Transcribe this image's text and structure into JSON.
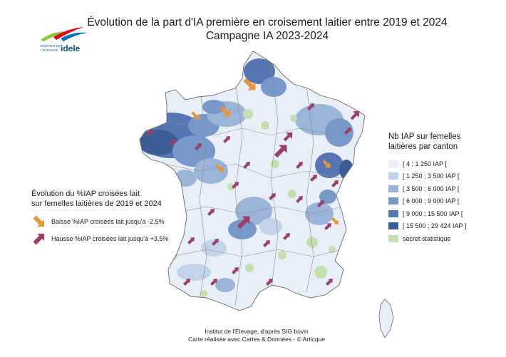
{
  "title": {
    "line1": "Évolution de la part d'IA première en croisement laitier entre 2019 et 2024",
    "line2": "Campagne IA 2023-2024"
  },
  "logo": {
    "icon": "idele-logo",
    "small_text_1": "INSTITUT DE",
    "small_text_2": "L'ÉLEVAGE",
    "brand": "idele"
  },
  "legend_classes": {
    "title_line1": "Nb IAP sur femelles",
    "title_line2": "laitières par canton",
    "items": [
      {
        "label": "[ 4 ; 1 250 IAP [",
        "color": "#e8eff8"
      },
      {
        "label": "[ 1 250 ; 3 500 IAP [",
        "color": "#c3d3ea"
      },
      {
        "label": "[ 3 500 ; 6 000 IAP [",
        "color": "#9bb5d9"
      },
      {
        "label": "[ 6 000 ; 9 000 IAP [",
        "color": "#7898c9"
      },
      {
        "label": "[ 9 000 ; 15 500 IAP [",
        "color": "#5576b3"
      },
      {
        "label": "[ 15 500 ; 29 424 IAP ]",
        "color": "#3c5c96"
      },
      {
        "label": "secret statistique",
        "color": "#c5dfb0"
      }
    ]
  },
  "legend_arrows": {
    "title_line1": "Évolution du %IAP croisées lait",
    "title_line2": "sur femelles laitières de 2019 et 2024",
    "decrease": {
      "label": "Baisse %IAP croisées lait jusqu'à -2,5%",
      "color": "#e8963a"
    },
    "increase": {
      "label": "Hausse %IAP croisées lait jusqu'à +3,5%",
      "color": "#9b3f6a"
    }
  },
  "footer": {
    "line1": "Institut de l'Elevage, d'après SIG bovin",
    "line2": "Carte réalisée avec Cartes & Données - © Articque"
  }
}
